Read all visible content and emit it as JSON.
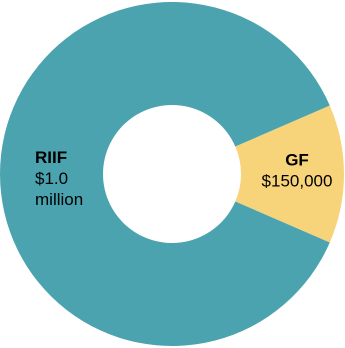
{
  "chart_data": {
    "type": "pie",
    "donut": true,
    "slices": [
      {
        "name": "RIIF",
        "value_label_lines": [
          "$1.0",
          "million"
        ],
        "value": 1000000,
        "color": "#4AA3AE"
      },
      {
        "name": "GF",
        "value_label_lines": [
          "$150,000"
        ],
        "value": 150000,
        "color": "#F7D47A"
      }
    ],
    "title": "",
    "legend": "none"
  }
}
